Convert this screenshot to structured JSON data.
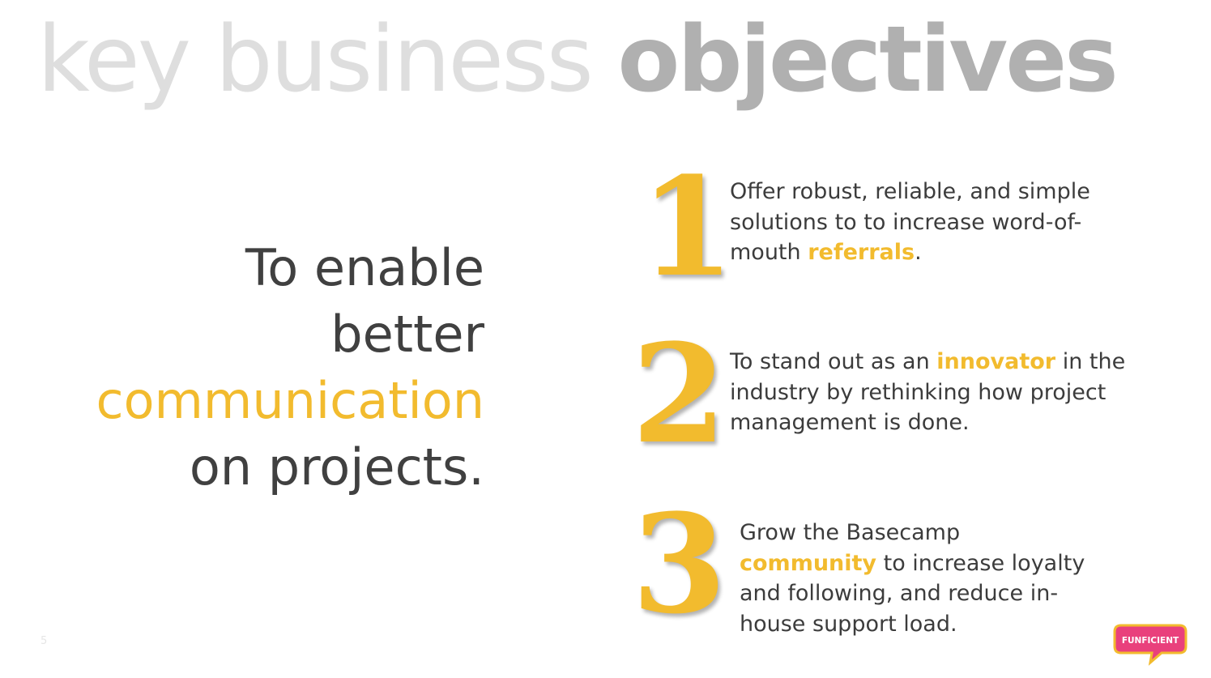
{
  "title": {
    "light": "key business",
    "bold": "objectives"
  },
  "statement": {
    "line1": "To enable",
    "line2": "better",
    "line3": "communication",
    "line4": "on projects."
  },
  "objectives": [
    {
      "number": "1",
      "before": "Offer robust, reliable, and simple solutions to to increase  word-of-mouth ",
      "keyword": "referrals",
      "after": "."
    },
    {
      "number": "2",
      "before": "To stand out as an ",
      "keyword": "innovator",
      "after": " in the industry by rethinking how project management is done."
    },
    {
      "number": "3",
      "before": "Grow the Basecamp ",
      "keyword": "community",
      "after": " to increase loyalty and following, and reduce in-house support load."
    }
  ],
  "page_number": "5",
  "logo": {
    "text": "FUNFICIENT"
  },
  "colors": {
    "accent": "#f2bb2e",
    "title_light": "#dedede",
    "title_bold": "#b0b0b0",
    "text": "#404040",
    "logo_pink": "#e9407c"
  }
}
